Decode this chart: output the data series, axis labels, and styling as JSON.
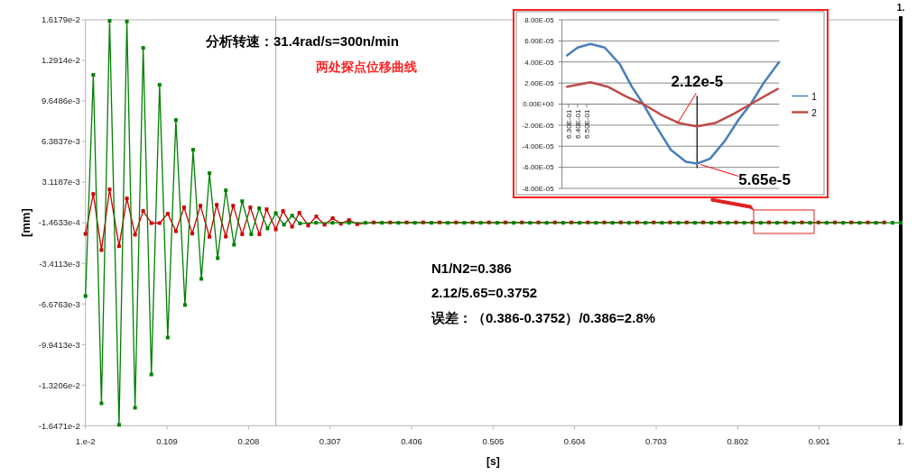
{
  "chart_data": [
    {
      "type": "line",
      "title": "分析转速：31.4rad/s=300n/min",
      "subtitle": "两处探点位移曲线",
      "xlabel": "[s]",
      "ylabel": "[mm]",
      "marker": "square",
      "xlim": [
        0.01,
        1.0
      ],
      "xticks": [
        {
          "value": 0.01,
          "label": "1.e-2"
        },
        0.109,
        0.208,
        0.307,
        0.406,
        0.505,
        0.604,
        0.703,
        0.802,
        0.901,
        {
          "value": 1.0,
          "label": "1."
        }
      ],
      "ylim": [
        -0.016471,
        0.016179
      ],
      "yticks": [
        {
          "value": 0.016179,
          "label": "1.6179e-2"
        },
        {
          "value": 0.012914,
          "label": "1.2914e-2"
        },
        {
          "value": 0.0096486,
          "label": "9.6486e-3"
        },
        {
          "value": 0.0063837,
          "label": "6.3837e-3"
        },
        {
          "value": 0.0031187,
          "label": "3.1187e-3"
        },
        {
          "value": -0.00014633,
          "label": "-1.4633e-4"
        },
        {
          "value": -0.0034113,
          "label": "-3.4113e-3"
        },
        {
          "value": -0.0066763,
          "label": "-6.6763e-3"
        },
        {
          "value": -0.0099413,
          "label": "-9.9413e-3"
        },
        {
          "value": -0.013206,
          "label": "-1.3206e-2"
        },
        {
          "value": -0.016471,
          "label": "-1.6471e-2"
        }
      ],
      "series": [
        {
          "color": "#cc0000",
          "x": [
            0.01,
            0.0195,
            0.0294,
            0.0393,
            0.0508,
            0.0603,
            0.0702,
            0.0801,
            0.09,
            0.1,
            0.1099,
            0.1198,
            0.1297,
            0.1396,
            0.1496,
            0.1606,
            0.1694,
            0.1804,
            0.1893,
            0.2003,
            0.2102,
            0.2212,
            0.23,
            0.2411,
            0.2499,
            0.2609,
            0.2697,
            0.2804,
            0.2903,
            0.3003,
            0.3102,
            0.3201,
            0.33,
            0.34,
            0.36,
            0.38,
            0.4,
            0.42,
            0.44,
            0.46,
            0.48,
            0.5,
            0.52,
            0.54,
            0.56,
            0.58,
            0.6,
            0.62,
            0.64,
            0.66,
            0.68,
            0.7,
            0.72,
            0.74,
            0.76,
            0.78,
            0.8,
            0.82,
            0.84,
            0.86,
            0.88,
            0.9,
            0.92,
            0.94,
            0.96,
            0.98
          ],
          "values": [
            -0.00104,
            0.00217,
            -0.00234,
            0.00254,
            -0.00203,
            0.00181,
            -0.00111,
            0.0008,
            -0.00017,
            -0.00017,
            0.00058,
            -0.00082,
            0.00109,
            -0.00102,
            0.00123,
            -0.00128,
            0.0013,
            -0.00126,
            0.00123,
            -0.00107,
            0.00109,
            -0.00107,
            0.00094,
            -0.00068,
            0.0008,
            -0.00046,
            0.00065,
            -0.00037,
            0.00036,
            -0.0003,
            0.00022,
            -0.00022,
            7e-05,
            -0.00026,
            -0.00012,
            -0.00012,
            -0.00012,
            -0.00012,
            -0.00012,
            -0.00012,
            -0.00012,
            -0.00012,
            -0.00012,
            -0.00012,
            -0.00012,
            -0.00012,
            -0.00012,
            -0.00012,
            -0.00012,
            -0.00012,
            -0.00012,
            -0.00012,
            -0.00012,
            -0.00012,
            -0.00012,
            -0.00012,
            -0.00012,
            -0.00012,
            -0.00012,
            -0.00012,
            -0.00012,
            -0.00012,
            -0.00012,
            -0.00012,
            -0.00012,
            -0.00012
          ]
        },
        {
          "color": "#008000",
          "x": [
            0.01,
            0.0195,
            0.0294,
            0.0393,
            0.0508,
            0.0603,
            0.0702,
            0.0801,
            0.09,
            0.1,
            0.1099,
            0.1198,
            0.1308,
            0.1407,
            0.1507,
            0.1606,
            0.1705,
            0.1804,
            0.1904,
            0.2003,
            0.2113,
            0.2209,
            0.2311,
            0.2411,
            0.251,
            0.2609,
            0.2705,
            0.29,
            0.31,
            0.33,
            0.35,
            0.37,
            0.39,
            0.41,
            0.43,
            0.45,
            0.47,
            0.49,
            0.51,
            0.53,
            0.55,
            0.57,
            0.59,
            0.61,
            0.63,
            0.65,
            0.67,
            0.69,
            0.71,
            0.73,
            0.75,
            0.77,
            0.79,
            0.81,
            0.83,
            0.85,
            0.87,
            0.89,
            0.91,
            0.93,
            0.95,
            0.97,
            0.99,
            1.0
          ],
          "values": [
            -0.00604,
            0.01175,
            -0.01467,
            0.0161,
            -0.0164,
            0.01605,
            -0.01503,
            0.01392,
            -0.01235,
            0.01095,
            -0.00938,
            0.00812,
            -0.00676,
            0.00573,
            -0.00466,
            0.00384,
            -0.00299,
            0.00246,
            -0.00191,
            0.00159,
            -0.00107,
            0.00102,
            -0.0006,
            0.00063,
            -0.0003,
            0.00043,
            -0.0002,
            -0.00015,
            -0.00015,
            -0.00015,
            -0.00015,
            -0.00015,
            -0.00015,
            -0.00015,
            -0.00015,
            -0.00015,
            -0.00015,
            -0.00015,
            -0.00015,
            -0.00015,
            -0.00015,
            -0.00015,
            -0.00015,
            -0.00015,
            -0.00015,
            -0.00015,
            -0.00015,
            -0.00015,
            -0.00015,
            -0.00015,
            -0.00015,
            -0.00015,
            -0.00015,
            -0.00015,
            -0.00015,
            -0.00015,
            -0.00015,
            -0.00015,
            -0.00015,
            -0.00015,
            -0.00015,
            -0.00015,
            -0.00015,
            -0.00015
          ]
        }
      ],
      "ref_lines": [
        {
          "axis": "x",
          "value": 0.241,
          "color": "#b4b4b4"
        },
        {
          "axis": "x",
          "value": 1.0,
          "label": "1.",
          "color": "#000000"
        }
      ],
      "annotations": [
        "N1/N2=0.386",
        "2.12/5.65=0.3752",
        "误差：（0.386-0.3752）/0.386=2.8%"
      ]
    },
    {
      "type": "line",
      "marker": "none",
      "grid": "y",
      "legend": "right",
      "xlim": [
        0.6227,
        0.8633
      ],
      "xticks": [
        {
          "value": 0.63,
          "label": "6.30E-01"
        },
        {
          "value": 0.64,
          "label": "6.40E-01"
        },
        {
          "value": 0.65,
          "label": "6.50E-01"
        }
      ],
      "ylim": [
        -8e-05,
        8e-05
      ],
      "yticks": [
        {
          "value": 8e-05,
          "label": "8.00E-05"
        },
        {
          "value": 6e-05,
          "label": "6.00E-05"
        },
        {
          "value": 4e-05,
          "label": "4.00E-05"
        },
        {
          "value": 2e-05,
          "label": "2.00E-05"
        },
        {
          "value": 0,
          "label": "0.00E+00"
        },
        {
          "value": -2e-05,
          "label": "-2.00E-05"
        },
        {
          "value": -4e-05,
          "label": "-4.00E-05"
        },
        {
          "value": -6e-05,
          "label": "-6.00E-05"
        },
        {
          "value": -8e-05,
          "label": "-8.00E-05"
        }
      ],
      "series": [
        {
          "name": "1",
          "color": "#4a7ebb",
          "x": [
            0.6283,
            0.64,
            0.6543,
            0.67,
            0.6867,
            0.7,
            0.7127,
            0.7267,
            0.7433,
            0.76,
            0.7723,
            0.7867,
            0.8033,
            0.8183,
            0.8317,
            0.8467,
            0.8633
          ],
          "values": [
            4.63e-05,
            5.37e-05,
            5.71e-05,
            5.37e-05,
            3.8e-05,
            1.66e-05,
            0,
            -2.06e-05,
            -4.34e-05,
            -5.47e-05,
            -5.65e-05,
            -5.19e-05,
            -3.48e-05,
            -1.48e-05,
            0,
            2.08e-05,
            3.99e-05
          ]
        },
        {
          "name": "2",
          "color": "#be4b48",
          "x": [
            0.6283,
            0.6543,
            0.6733,
            0.6933,
            0.7127,
            0.7333,
            0.7533,
            0.7723,
            0.7933,
            0.8133,
            0.8317,
            0.8617
          ],
          "values": [
            1.65e-05,
            2.08e-05,
            1.65e-05,
            7.4e-06,
            0,
            -1.05e-05,
            -1.82e-05,
            -2.12e-05,
            -1.77e-05,
            -9.1e-06,
            0,
            1.45e-05
          ]
        }
      ],
      "ref_lines": [
        {
          "axis": "x",
          "value": 0.7723,
          "color": "#000000"
        }
      ],
      "annotations": [
        {
          "text": "2.12e-5",
          "x": 0.7723,
          "y": -2.12e-05
        },
        {
          "text": "5.65e-5",
          "x": 0.7723,
          "y": -5.65e-05
        }
      ]
    }
  ]
}
